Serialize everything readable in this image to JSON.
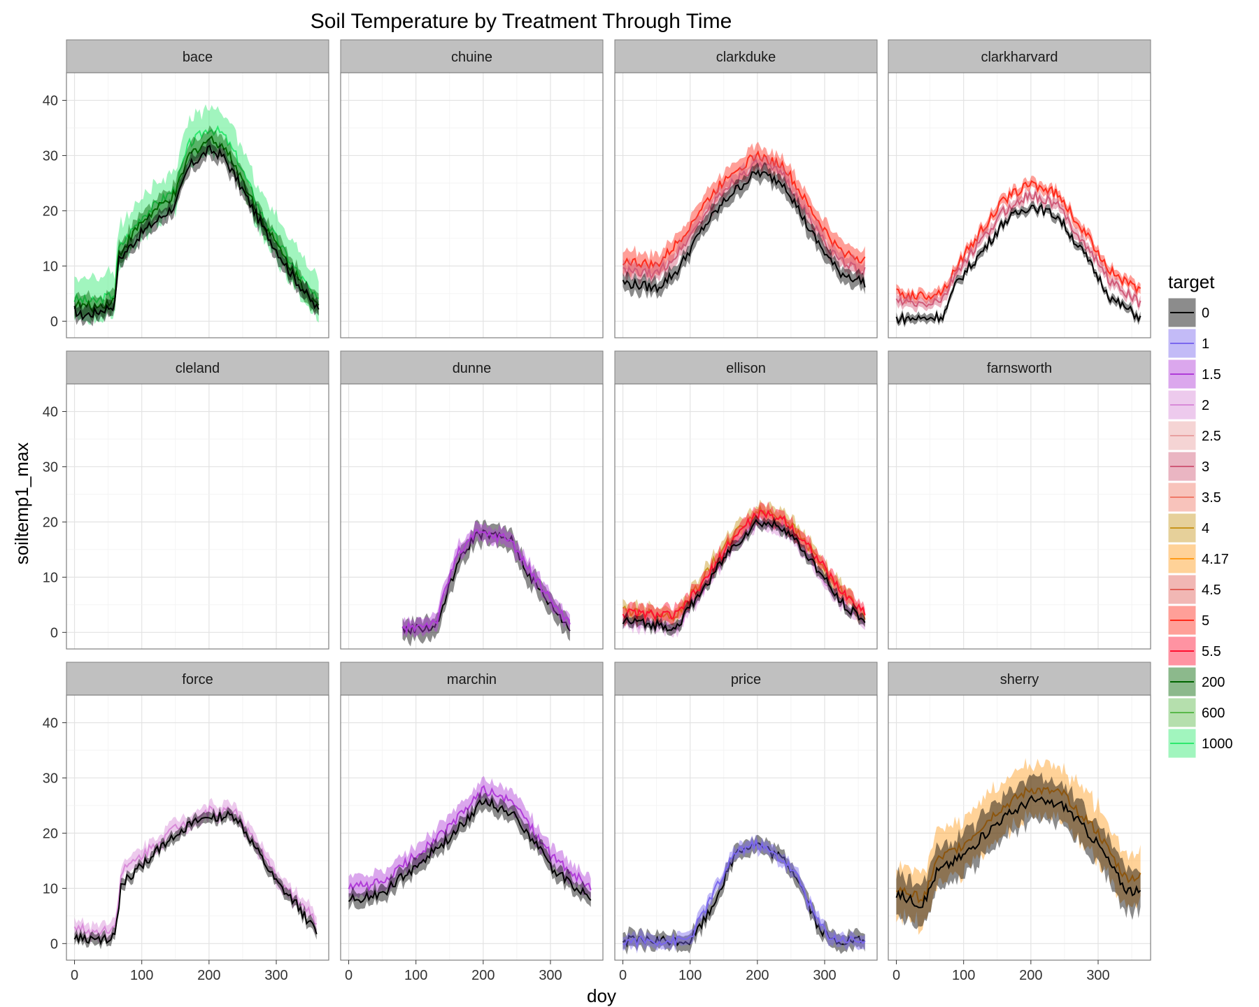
{
  "chart_data": {
    "type": "line",
    "title": "Soil Temperature by Treatment Through Time",
    "xlabel": "doy",
    "ylabel": "soiltemp1_max",
    "xlim": [
      -12,
      378
    ],
    "ylim": [
      -3,
      45
    ],
    "xticks": [
      0,
      100,
      200,
      300
    ],
    "yticks": [
      0,
      10,
      20,
      30,
      40
    ],
    "grid": true,
    "legend": {
      "title": "target",
      "placement": "right",
      "entries": [
        {
          "label": "0",
          "color": "#000000"
        },
        {
          "label": "1",
          "color": "#7b68ee"
        },
        {
          "label": "1.5",
          "color": "#b03cd8"
        },
        {
          "label": "2",
          "color": "#d88ad8"
        },
        {
          "label": "2.5",
          "color": "#e8a0a0"
        },
        {
          "label": "3",
          "color": "#d05a78"
        },
        {
          "label": "3.5",
          "color": "#f07a68"
        },
        {
          "label": "4",
          "color": "#c8961e"
        },
        {
          "label": "4.17",
          "color": "#ff9c1a"
        },
        {
          "label": "4.5",
          "color": "#e06058"
        },
        {
          "label": "5",
          "color": "#ff2a1a"
        },
        {
          "label": "5.5",
          "color": "#ff1030"
        },
        {
          "label": "200",
          "color": "#006400"
        },
        {
          "label": "600",
          "color": "#5ab84a"
        },
        {
          "label": "1000",
          "color": "#2ee86e"
        }
      ]
    },
    "facets": [
      {
        "name": "bace",
        "series": [
          {
            "target": "1000",
            "x": [
              0,
              30,
              60,
              65,
              100,
              150,
              170,
              200,
              220,
              240,
              280,
              320,
              365
            ],
            "y": [
              4,
              3.5,
              5,
              13,
              19,
              24,
              32,
              35,
              34,
              30,
              19,
              11,
              3
            ],
            "band": 4
          },
          {
            "target": "200",
            "x": [
              0,
              30,
              60,
              65,
              100,
              150,
              170,
              200,
              220,
              240,
              280,
              320,
              365
            ],
            "y": [
              3,
              2.5,
              4,
              12,
              18,
              23,
              30,
              33,
              32,
              28,
              18,
              10,
              2
            ],
            "band": 2
          },
          {
            "target": "0",
            "x": [
              0,
              10,
              30,
              60,
              65,
              100,
              150,
              170,
              200,
              220,
              240,
              280,
              320,
              365
            ],
            "y": [
              2,
              1,
              1.5,
              3,
              11,
              16,
              21,
              28,
              31,
              30,
              26,
              17,
              9,
              1.5
            ],
            "band": 1.5
          }
        ]
      },
      {
        "name": "chuine",
        "series": []
      },
      {
        "name": "clarkduke",
        "series": [
          {
            "target": "5",
            "x": [
              0,
              50,
              80,
              120,
              160,
              200,
              240,
              280,
              320,
              360
            ],
            "y": [
              11,
              10,
              14,
              21,
              27,
              30,
              28,
              20,
              13,
              11
            ],
            "band": 2
          },
          {
            "target": "3",
            "x": [
              0,
              50,
              80,
              120,
              160,
              200,
              240,
              280,
              320,
              360
            ],
            "y": [
              9,
              8.5,
              12,
              19,
              25,
              28.5,
              26.5,
              18,
              11,
              9
            ],
            "band": 1.5
          },
          {
            "target": "0",
            "x": [
              0,
              50,
              80,
              120,
              160,
              200,
              240,
              280,
              320,
              360
            ],
            "y": [
              7,
              6,
              9,
              17,
              23,
              27,
              25,
              16,
              9,
              7
            ],
            "band": 1.5
          }
        ]
      },
      {
        "name": "clarkharvard",
        "series": [
          {
            "target": "5",
            "x": [
              0,
              40,
              70,
              90,
              130,
              160,
              200,
              240,
              280,
              320,
              365
            ],
            "y": [
              5,
              4.5,
              5.5,
              10,
              17,
              22,
              25,
              23,
              16,
              9,
              5
            ],
            "band": 1
          },
          {
            "target": "3",
            "x": [
              0,
              40,
              70,
              90,
              130,
              160,
              200,
              240,
              280,
              320,
              365
            ],
            "y": [
              3.5,
              3,
              4,
              9,
              15,
              20,
              23,
              21,
              14,
              7,
              3
            ],
            "band": 1
          },
          {
            "target": "0",
            "x": [
              0,
              40,
              70,
              90,
              130,
              160,
              200,
              240,
              280,
              320,
              365
            ],
            "y": [
              0.5,
              0.5,
              1,
              7,
              13,
              18,
              21,
              19,
              12,
              4,
              0.5
            ],
            "band": 0.8
          }
        ]
      },
      {
        "name": "cleland",
        "series": []
      },
      {
        "name": "dunne",
        "series": [
          {
            "target": "0",
            "x": [
              80,
              130,
              160,
              190,
              240,
              270,
              300,
              330
            ],
            "y": [
              0.5,
              1,
              12,
              18,
              17,
              10,
              5,
              0.5
            ],
            "band": 2
          },
          {
            "target": "1.5",
            "x": [
              80,
              130,
              160,
              190,
              240,
              270,
              300,
              330
            ],
            "y": [
              0.5,
              2,
              14,
              18,
              17,
              11,
              6,
              1.5
            ],
            "band": 1.5
          }
        ]
      },
      {
        "name": "ellison",
        "series": [
          {
            "target": "4",
            "x": [
              0,
              80,
              120,
              160,
              200,
              240,
              280,
              320,
              360
            ],
            "y": [
              4,
              3,
              10,
              17,
              22,
              21,
              15,
              8,
              3
            ],
            "band": 1.5
          },
          {
            "target": "2",
            "x": [
              0,
              80,
              120,
              160,
              200,
              240,
              280,
              320,
              360
            ],
            "y": [
              2,
              1,
              8,
              15,
              20,
              19,
              13,
              6,
              2
            ],
            "band": 1.2
          },
          {
            "target": "5.5",
            "x": [
              0,
              80,
              120,
              160,
              200,
              240,
              280,
              320,
              360
            ],
            "y": [
              3.5,
              3,
              9,
              16.5,
              21.5,
              20.5,
              15,
              8,
              3.5
            ],
            "band": 1.5
          },
          {
            "target": "0",
            "x": [
              0,
              80,
              120,
              160,
              200,
              240,
              280,
              320,
              360
            ],
            "y": [
              2,
              1,
              8,
              15,
              20,
              19,
              13,
              6,
              2
            ],
            "band": 1
          }
        ]
      },
      {
        "name": "farnsworth",
        "series": []
      },
      {
        "name": "force",
        "series": [
          {
            "target": "2",
            "x": [
              0,
              30,
              60,
              70,
              100,
              150,
              200,
              240,
              270,
              300,
              330,
              360
            ],
            "y": [
              3,
              2,
              3,
              13,
              16,
              21,
              24,
              24,
              18,
              12,
              8,
              4
            ],
            "band": 1.5
          },
          {
            "target": "0",
            "x": [
              0,
              30,
              60,
              70,
              100,
              150,
              200,
              240,
              270,
              300,
              330,
              360
            ],
            "y": [
              1,
              0.5,
              1,
              11,
              14,
              20,
              23,
              23,
              17,
              11,
              7,
              2
            ],
            "band": 1
          }
        ]
      },
      {
        "name": "marchin",
        "series": [
          {
            "target": "1.5",
            "x": [
              0,
              50,
              100,
              150,
              200,
              250,
              300,
              360
            ],
            "y": [
              10,
              11,
              16,
              21,
              28,
              25,
              16,
              10
            ],
            "band": 2
          },
          {
            "target": "0",
            "x": [
              0,
              50,
              100,
              150,
              200,
              250,
              300,
              360
            ],
            "y": [
              8,
              9,
              14,
              19,
              26,
              23,
              14,
              8
            ],
            "band": 1.5
          }
        ]
      },
      {
        "name": "price",
        "series": [
          {
            "target": "0",
            "x": [
              0,
              80,
              100,
              130,
              170,
              200,
              240,
              260,
              290,
              310,
              360
            ],
            "y": [
              0.5,
              0.5,
              0.5,
              6,
              17,
              18,
              15,
              12,
              3,
              0.5,
              0.5
            ],
            "band": 1.5
          },
          {
            "target": "1",
            "x": [
              0,
              80,
              100,
              130,
              170,
              200,
              240,
              260,
              290,
              310,
              360
            ],
            "y": [
              0.5,
              0.5,
              1,
              8,
              17,
              18,
              15,
              12,
              4,
              1,
              0.5
            ],
            "band": 1.2
          }
        ]
      },
      {
        "name": "sherry",
        "series": [
          {
            "target": "4.17",
            "x": [
              0,
              40,
              60,
              100,
              150,
              200,
              250,
              300,
              340,
              365
            ],
            "y": [
              10,
              8,
              15,
              18,
              24,
              28,
              27,
              20,
              12,
              12
            ],
            "band": 5
          },
          {
            "target": "0",
            "x": [
              0,
              40,
              60,
              100,
              150,
              200,
              250,
              300,
              340,
              365
            ],
            "y": [
              9,
              7,
              13,
              16,
              22,
              26,
              25,
              18,
              10,
              9
            ],
            "band": 4
          }
        ]
      }
    ]
  }
}
